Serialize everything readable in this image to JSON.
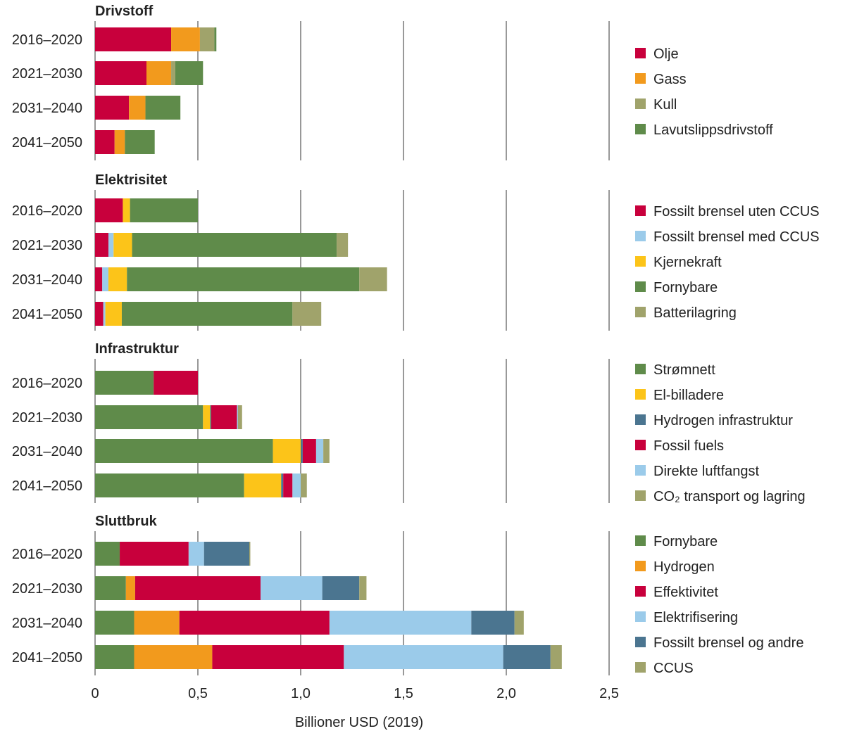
{
  "chart_data": {
    "type": "bar",
    "orientation": "horizontal",
    "stacked": true,
    "xlabel": "Billioner USD (2019)",
    "xlim": [
      0,
      2.5
    ],
    "xticks": [
      0,
      0.5,
      1.0,
      1.5,
      2.0,
      2.5
    ],
    "xtick_labels": [
      "0",
      "0,5",
      "1,0",
      "1,5",
      "2,0",
      "2,5"
    ],
    "grid": "vertical",
    "legend_position": "right",
    "panels": [
      {
        "title": "Drivstoff",
        "categories": [
          "2016–2020",
          "2021–2030",
          "2031–2040",
          "2041–2050"
        ],
        "series": [
          {
            "name": "Olje",
            "color": "#c8003c",
            "values": [
              0.37,
              0.25,
              0.165,
              0.095
            ]
          },
          {
            "name": "Gass",
            "color": "#f29a1d",
            "values": [
              0.14,
              0.12,
              0.08,
              0.05
            ]
          },
          {
            "name": "Kull",
            "color": "#a0a36b",
            "values": [
              0.07,
              0.02,
              0.0,
              0.0
            ]
          },
          {
            "name": "Lavutslippsdrivstoff",
            "color": "#5f8b4a",
            "values": [
              0.01,
              0.135,
              0.17,
              0.145
            ]
          }
        ]
      },
      {
        "title": "Elektrisitet",
        "categories": [
          "2016–2020",
          "2021–2030",
          "2031–2040",
          "2041–2050"
        ],
        "series": [
          {
            "name": "Fossilt brensel uten CCUS",
            "color": "#c8003c",
            "values": [
              0.135,
              0.065,
              0.035,
              0.04
            ]
          },
          {
            "name": "Fossilt brensel med CCUS",
            "color": "#9bcbea",
            "values": [
              0.0,
              0.025,
              0.03,
              0.01
            ]
          },
          {
            "name": "Kjernekraft",
            "color": "#fcc419",
            "values": [
              0.035,
              0.09,
              0.09,
              0.08
            ]
          },
          {
            "name": "Fornybare",
            "color": "#5f8b4a",
            "values": [
              0.33,
              0.995,
              1.13,
              0.83
            ]
          },
          {
            "name": "Batterilagring",
            "color": "#a0a36b",
            "values": [
              0.0,
              0.055,
              0.135,
              0.14
            ]
          }
        ]
      },
      {
        "title": "Infrastruktur",
        "categories": [
          "2016–2020",
          "2021–2030",
          "2031–2040",
          "2041–2050"
        ],
        "series": [
          {
            "name": "Strømnett",
            "color": "#5f8b4a",
            "values": [
              0.285,
              0.525,
              0.865,
              0.725
            ]
          },
          {
            "name": "El-billadere",
            "color": "#fcc419",
            "values": [
              0.0,
              0.035,
              0.135,
              0.18
            ]
          },
          {
            "name": "Hydrogen infrastruktur",
            "color": "#4b7590",
            "values": [
              0.0,
              0.005,
              0.01,
              0.01
            ]
          },
          {
            "name": "Fossil fuels",
            "color": "#c8003c",
            "values": [
              0.215,
              0.125,
              0.065,
              0.045
            ]
          },
          {
            "name": "Direkte luftfangst",
            "color": "#9bcbea",
            "values": [
              0.0,
              0.005,
              0.035,
              0.04
            ]
          },
          {
            "name": "CO₂ transport og lagring",
            "color": "#a0a36b",
            "values": [
              0.0,
              0.02,
              0.03,
              0.03
            ]
          }
        ]
      },
      {
        "title": "Sluttbruk",
        "categories": [
          "2016–2020",
          "2021–2030",
          "2031–2040",
          "2041–2050"
        ],
        "series": [
          {
            "name": "Fornybare",
            "color": "#5f8b4a",
            "values": [
              0.12,
              0.15,
              0.19,
              0.19
            ]
          },
          {
            "name": "Hydrogen",
            "color": "#f29a1d",
            "values": [
              0.0,
              0.045,
              0.22,
              0.38
            ]
          },
          {
            "name": "Effektivitet",
            "color": "#c8003c",
            "values": [
              0.335,
              0.61,
              0.73,
              0.64
            ]
          },
          {
            "name": "Elektrifisering",
            "color": "#9bcbea",
            "values": [
              0.075,
              0.3,
              0.69,
              0.775
            ]
          },
          {
            "name": "Fossilt brensel og andre",
            "color": "#4b7590",
            "values": [
              0.22,
              0.18,
              0.21,
              0.23
            ]
          },
          {
            "name": "CCUS",
            "color": "#a0a36b",
            "values": [
              0.005,
              0.035,
              0.045,
              0.055
            ]
          }
        ]
      }
    ]
  }
}
